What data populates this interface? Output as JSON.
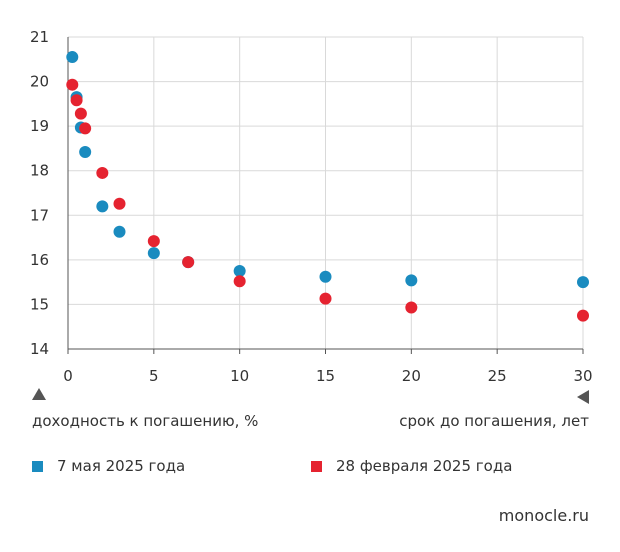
{
  "chart_data": {
    "type": "scatter",
    "xlabel": "срок до погашения, лет",
    "ylabel": "доходность к погашению, %",
    "xlim": [
      0,
      30
    ],
    "ylim": [
      14,
      21
    ],
    "xticks": [
      0,
      5,
      10,
      15,
      20,
      25,
      30
    ],
    "yticks": [
      14,
      15,
      16,
      17,
      18,
      19,
      20,
      21
    ],
    "grid": true,
    "legend_position": "bottom",
    "series": [
      {
        "name": "7 мая 2025 года",
        "color": "#1a8bbf",
        "points": [
          {
            "x": 0.25,
            "y": 20.55
          },
          {
            "x": 0.5,
            "y": 19.65
          },
          {
            "x": 0.75,
            "y": 18.97
          },
          {
            "x": 1.0,
            "y": 18.42
          },
          {
            "x": 2.0,
            "y": 17.2
          },
          {
            "x": 3.0,
            "y": 16.63
          },
          {
            "x": 5.0,
            "y": 16.15
          },
          {
            "x": 7.0,
            "y": 15.95
          },
          {
            "x": 10.0,
            "y": 15.75
          },
          {
            "x": 15.0,
            "y": 15.62
          },
          {
            "x": 20.0,
            "y": 15.54
          },
          {
            "x": 30.0,
            "y": 15.5
          }
        ]
      },
      {
        "name": "28 февраля 2025 года",
        "color": "#e52330",
        "points": [
          {
            "x": 0.25,
            "y": 19.93
          },
          {
            "x": 0.5,
            "y": 19.58
          },
          {
            "x": 0.75,
            "y": 19.28
          },
          {
            "x": 1.0,
            "y": 18.95
          },
          {
            "x": 2.0,
            "y": 17.95
          },
          {
            "x": 3.0,
            "y": 17.26
          },
          {
            "x": 5.0,
            "y": 16.42
          },
          {
            "x": 7.0,
            "y": 15.95
          },
          {
            "x": 10.0,
            "y": 15.52
          },
          {
            "x": 15.0,
            "y": 15.13
          },
          {
            "x": 20.0,
            "y": 14.93
          },
          {
            "x": 30.0,
            "y": 14.75
          }
        ]
      }
    ]
  },
  "source": "monocle.ru"
}
